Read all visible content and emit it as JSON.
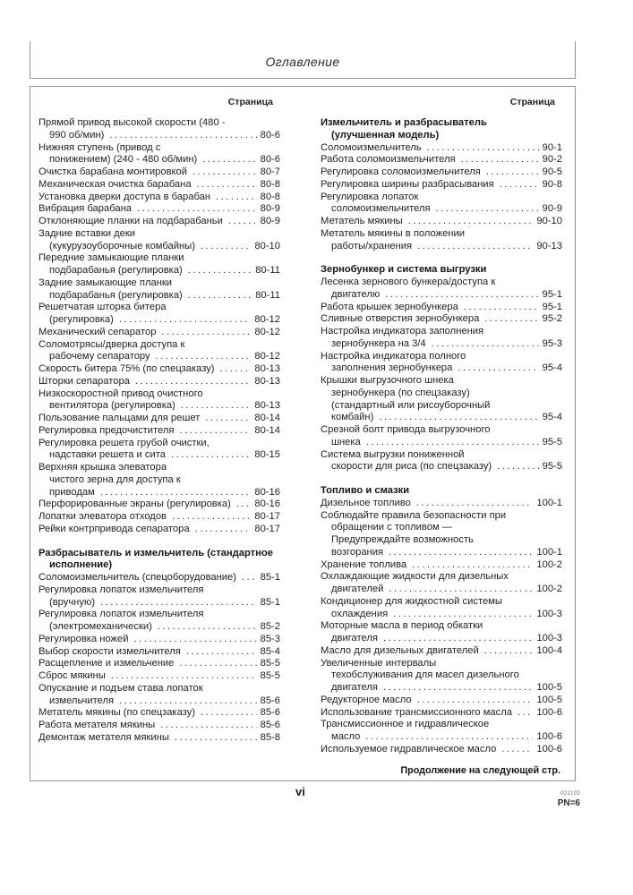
{
  "page": {
    "title": "Оглавление",
    "column_page_label": "Страница",
    "footer": {
      "continued": "Продолжение на следующей стр.",
      "page_number": "vi",
      "print_code": "022103",
      "pn": "PN=6"
    },
    "colors": {
      "border": "#949494",
      "text": "#222222",
      "background": "#ffffff"
    }
  },
  "toc": {
    "columns": [
      {
        "blocks": [
          {
            "t": "e",
            "lines": [
              "Прямой привод высокой скорости (480 -",
              "990 об/мин)"
            ],
            "page": "80-6"
          },
          {
            "t": "e",
            "lines": [
              "Нижняя ступень (привод с",
              "понижением) (240 - 480 об/мин)"
            ],
            "page": "80-6"
          },
          {
            "t": "e",
            "lines": [
              "Очистка барабана монтировкой"
            ],
            "page": "80-7"
          },
          {
            "t": "e",
            "lines": [
              "Механическая очистка барабана"
            ],
            "page": "80-8"
          },
          {
            "t": "e",
            "lines": [
              "Установка дверки доступа в барабан"
            ],
            "page": "80-8"
          },
          {
            "t": "e",
            "lines": [
              "Вибрация барабана"
            ],
            "page": "80-9"
          },
          {
            "t": "e",
            "lines": [
              "Отклоняющие планки на подбарабаньи"
            ],
            "page": "80-9"
          },
          {
            "t": "e",
            "lines": [
              "Задние вставки деки",
              "(кукурузоуборочные комбайны)"
            ],
            "page": "80-10"
          },
          {
            "t": "e",
            "lines": [
              "Передние замыкающие планки",
              "подбарабанья (регулировка)"
            ],
            "page": "80-11"
          },
          {
            "t": "e",
            "lines": [
              "Задние замыкающие планки",
              "подбарабанья (регулировка)"
            ],
            "page": "80-11"
          },
          {
            "t": "e",
            "lines": [
              "Решетчатая шторка битера",
              "(регулировка)"
            ],
            "page": "80-12"
          },
          {
            "t": "e",
            "lines": [
              "Механический сепаратор"
            ],
            "page": "80-12"
          },
          {
            "t": "e",
            "lines": [
              "Соломотрясы/дверка доступа к",
              "рабочему сепаратору"
            ],
            "page": "80-12"
          },
          {
            "t": "e",
            "lines": [
              "Скорость битера 75% (по спецзаказу)"
            ],
            "page": "80-13"
          },
          {
            "t": "e",
            "lines": [
              "Шторки сепаратора"
            ],
            "page": "80-13"
          },
          {
            "t": "e",
            "lines": [
              "Низкоскоростной привод очистного",
              "вентилятора (регулировка)"
            ],
            "page": "80-13"
          },
          {
            "t": "e",
            "lines": [
              "Пользование пальцами для решет"
            ],
            "page": "80-14"
          },
          {
            "t": "e",
            "lines": [
              "Регулировка предочистителя"
            ],
            "page": "80-14"
          },
          {
            "t": "e",
            "lines": [
              "Регулировка решета грубой очистки,",
              "надставки решета и сита"
            ],
            "page": "80-15"
          },
          {
            "t": "e",
            "lines": [
              "Верхняя крышка элеватора",
              "чистого зерна для доступа к",
              "приводам"
            ],
            "page": "80-16"
          },
          {
            "t": "e",
            "lines": [
              "Перфорированные экраны (регулировка)"
            ],
            "page": "80-16"
          },
          {
            "t": "e",
            "lines": [
              "Лопатки элеватора отходов"
            ],
            "page": "80-17"
          },
          {
            "t": "e",
            "lines": [
              "Рейки контрпривода сепаратора"
            ],
            "page": "80-17"
          },
          {
            "t": "h",
            "lines": [
              "Разбрасыватель и измельчитель (стандартное",
              "исполнение)"
            ]
          },
          {
            "t": "e",
            "lines": [
              "Соломоизмельчитель (спецоборудование)"
            ],
            "page": "85-1"
          },
          {
            "t": "e",
            "lines": [
              "Регулировка лопаток измельчителя",
              "(вручную)"
            ],
            "page": "85-1"
          },
          {
            "t": "e",
            "lines": [
              "Регулировка лопаток измельчителя",
              "(электромеханически)"
            ],
            "page": "85-2"
          },
          {
            "t": "e",
            "lines": [
              "Регулировка ножей"
            ],
            "page": "85-3"
          },
          {
            "t": "e",
            "lines": [
              "Выбор скорости измельчителя"
            ],
            "page": "85-4"
          },
          {
            "t": "e",
            "lines": [
              "Расщепление и измельчение"
            ],
            "page": "85-5"
          },
          {
            "t": "e",
            "lines": [
              "Сброс мякины"
            ],
            "page": "85-5"
          },
          {
            "t": "e",
            "lines": [
              "Опускание и подъем става лопаток",
              "измельчителя"
            ],
            "page": "85-6"
          },
          {
            "t": "e",
            "lines": [
              "Метатель мякины (по спецзаказу)"
            ],
            "page": "85-6"
          },
          {
            "t": "e",
            "lines": [
              "Работа метателя мякины"
            ],
            "page": "85-6"
          },
          {
            "t": "e",
            "lines": [
              "Демонтаж метателя мякины"
            ],
            "page": "85-8"
          }
        ]
      },
      {
        "blocks": [
          {
            "t": "h",
            "lines": [
              "Измельчитель и разбрасыватель",
              "(улучшенная модель)"
            ]
          },
          {
            "t": "e",
            "lines": [
              "Соломоизмельчитель"
            ],
            "page": "90-1"
          },
          {
            "t": "e",
            "lines": [
              "Работа соломоизмельчителя"
            ],
            "page": "90-2"
          },
          {
            "t": "e",
            "lines": [
              "Регулировка соломоизмельчителя"
            ],
            "page": "90-5"
          },
          {
            "t": "e",
            "lines": [
              "Регулировка ширины разбрасывания"
            ],
            "page": "90-8"
          },
          {
            "t": "e",
            "lines": [
              "Регулировка лопаток",
              "соломоизмельчителя"
            ],
            "page": "90-9"
          },
          {
            "t": "e",
            "lines": [
              "Метатель мякины"
            ],
            "page": "90-10"
          },
          {
            "t": "e",
            "lines": [
              "Метатель мякины в положении",
              "работы/хранения"
            ],
            "page": "90-13"
          },
          {
            "t": "h",
            "lines": [
              "Зернобункер и система выгрузки"
            ]
          },
          {
            "t": "e",
            "lines": [
              "Лесенка зернового бункера/доступа к",
              "двигателю"
            ],
            "page": "95-1"
          },
          {
            "t": "e",
            "lines": [
              "Работа крышек зернобункера"
            ],
            "page": "95-1"
          },
          {
            "t": "e",
            "lines": [
              "Сливные отверстия зернобункера"
            ],
            "page": "95-2"
          },
          {
            "t": "e",
            "lines": [
              "Настройка индикатора заполнения",
              "зернобункера на 3/4"
            ],
            "page": "95-3"
          },
          {
            "t": "e",
            "lines": [
              "Настройка индикатора полного",
              "заполнения зернобункера"
            ],
            "page": "95-4"
          },
          {
            "t": "e",
            "lines": [
              "Крышки выгрузочного шнека",
              "зернобункера (по спецзаказу)",
              "(стандартный или рисоуборочный",
              "комбайн)"
            ],
            "page": "95-4"
          },
          {
            "t": "e",
            "lines": [
              "Срезной болт привода выгрузочного",
              "шнека"
            ],
            "page": "95-5"
          },
          {
            "t": "e",
            "lines": [
              "Система выгрузки пониженной",
              "скорости для риса (по спецзаказу)"
            ],
            "page": "95-5"
          },
          {
            "t": "h",
            "lines": [
              "Топливо и смазки"
            ]
          },
          {
            "t": "e",
            "lines": [
              "Дизельное топливо"
            ],
            "page": "100-1"
          },
          {
            "t": "e",
            "lines": [
              "Соблюдайте правила безопасности при",
              "обращении с топливом —",
              "Предупреждайте возможность",
              "возгорания"
            ],
            "page": "100-1"
          },
          {
            "t": "e",
            "lines": [
              "Хранение топлива"
            ],
            "page": "100-2"
          },
          {
            "t": "e",
            "lines": [
              "Охлаждающие жидкости для дизельных",
              "двигателей"
            ],
            "page": "100-2"
          },
          {
            "t": "e",
            "lines": [
              "Кондиционер для жидкостной системы",
              "охлаждения"
            ],
            "page": "100-3"
          },
          {
            "t": "e",
            "lines": [
              "Моторные масла в период обкатки",
              "двигателя"
            ],
            "page": "100-3"
          },
          {
            "t": "e",
            "lines": [
              "Масло для дизельных двигателей"
            ],
            "page": "100-4"
          },
          {
            "t": "e",
            "lines": [
              "Увеличенные интервалы",
              "техобслуживания для масел дизельного",
              "двигателя"
            ],
            "page": "100-5"
          },
          {
            "t": "e",
            "lines": [
              "Редукторное масло"
            ],
            "page": "100-5"
          },
          {
            "t": "e",
            "lines": [
              "Использование трансмиссионного масла"
            ],
            "page": "100-6"
          },
          {
            "t": "e",
            "lines": [
              "Трансмиссионное и гидравлическое",
              "масло"
            ],
            "page": "100-6"
          },
          {
            "t": "e",
            "lines": [
              "Используемое гидравлическое масло"
            ],
            "page": "100-6"
          }
        ]
      }
    ]
  }
}
